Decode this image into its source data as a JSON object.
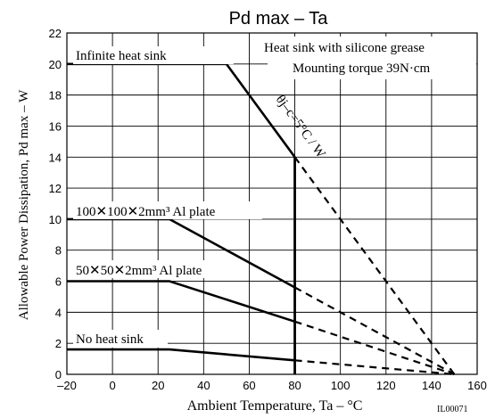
{
  "chart_data": {
    "type": "line",
    "title": "Pd max  –  Ta",
    "xlabel": "Ambient Temperature, Ta  –  °C",
    "ylabel": "Allowable Power Dissipation, Pd max  –  W",
    "xlim": [
      -20,
      160
    ],
    "ylim": [
      0,
      22
    ],
    "xticks": [
      -20,
      0,
      20,
      40,
      60,
      80,
      100,
      120,
      140,
      160
    ],
    "yticks": [
      0,
      2,
      4,
      6,
      8,
      10,
      12,
      14,
      16,
      18,
      20,
      22
    ],
    "grid": true,
    "series": [
      {
        "name": "Infinite heat sink",
        "solid": [
          [
            -20,
            20
          ],
          [
            50,
            20
          ],
          [
            80,
            14
          ]
        ],
        "dashed": [
          [
            80,
            14
          ],
          [
            150,
            0
          ]
        ]
      },
      {
        "name": "100✕100✕2mm³ Al plate",
        "solid": [
          [
            -20,
            10
          ],
          [
            25,
            10
          ],
          [
            80,
            5.6
          ]
        ],
        "dashed": [
          [
            80,
            5.6
          ],
          [
            150,
            0
          ]
        ]
      },
      {
        "name": "50✕50✕2mm³ Al plate",
        "solid": [
          [
            -20,
            6
          ],
          [
            25,
            6
          ],
          [
            80,
            3.4
          ]
        ],
        "dashed": [
          [
            80,
            3.4
          ],
          [
            150,
            0
          ]
        ]
      },
      {
        "name": "No heat sink",
        "solid": [
          [
            -20,
            1.6
          ],
          [
            25,
            1.6
          ],
          [
            80,
            0.9
          ]
        ],
        "dashed": [
          [
            80,
            0.9
          ],
          [
            150,
            0
          ]
        ]
      }
    ],
    "vertical_limit": {
      "x": 80,
      "y_from": 0,
      "y_to": 14
    },
    "annotations": {
      "condition_line1": "Heat sink with silicone grease",
      "condition_line2": "Mounting torque 39N·cm",
      "slope_label": "θj–c=5°C / W"
    },
    "figure_code": "IL00071"
  }
}
